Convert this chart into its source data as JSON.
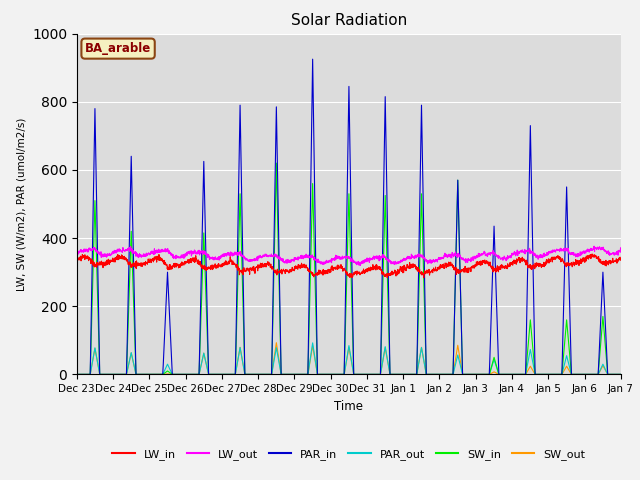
{
  "title": "Solar Radiation",
  "ylabel": "LW, SW (W/m2), PAR (umol/m2/s)",
  "xlabel": "Time",
  "ylim": [
    0,
    1000
  ],
  "bg_color": "#dcdcdc",
  "label_box": "BA_arable",
  "legend": [
    "LW_in",
    "LW_out",
    "PAR_in",
    "PAR_out",
    "SW_in",
    "SW_out"
  ],
  "colors": {
    "LW_in": "#ff0000",
    "LW_out": "#ff00ff",
    "PAR_in": "#0000cc",
    "PAR_out": "#00cccc",
    "SW_in": "#00ee00",
    "SW_out": "#ff9900"
  },
  "n_days": 15,
  "xtick_labels": [
    "Dec 23",
    "Dec 24",
    "Dec 25",
    "Dec 26",
    "Dec 27",
    "Dec 28",
    "Dec 29",
    "Dec 30",
    "Dec 31",
    "Jan 1",
    "Jan 2",
    "Jan 3",
    "Jan 4",
    "Jan 5",
    "Jan 6",
    "Jan 7"
  ],
  "day_peaks_PAR": [
    780,
    640,
    300,
    625,
    790,
    785,
    925,
    845,
    815,
    790,
    570,
    435,
    730,
    550,
    300
  ],
  "day_peaks_SW": [
    510,
    420,
    10,
    415,
    530,
    620,
    560,
    530,
    525,
    530,
    570,
    50,
    160,
    160,
    170
  ],
  "lw_in_base": 320,
  "lw_out_base": 345,
  "lw_in_amp": 18,
  "lw_out_amp": 15
}
